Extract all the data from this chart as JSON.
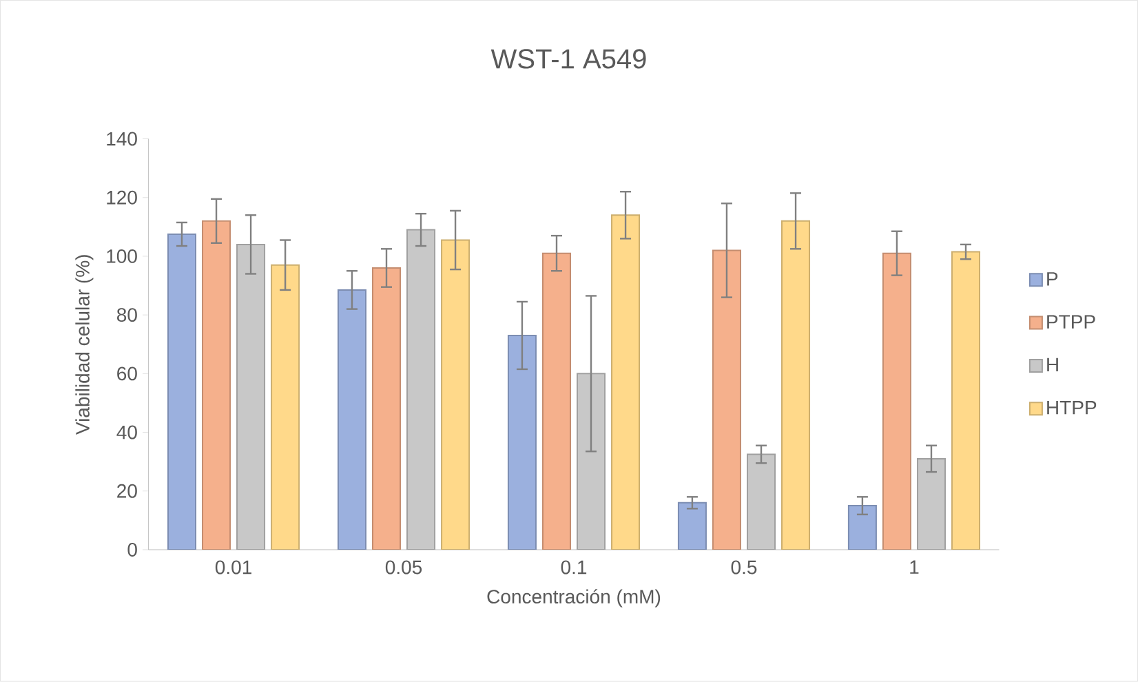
{
  "chart_data": {
    "type": "bar",
    "title": "WST-1 A549",
    "xlabel": "Concentración (mM)",
    "ylabel": "Viabilidad celular (%)",
    "categories": [
      "0.01",
      "0.05",
      "0.1",
      "0.5",
      "1"
    ],
    "series": [
      {
        "name": "P",
        "color": "#9bb0de",
        "values": [
          107.5,
          88.5,
          73,
          16,
          15
        ],
        "errors": [
          4,
          6.5,
          11.5,
          2,
          3
        ]
      },
      {
        "name": "PTPP",
        "color": "#f5b08c",
        "values": [
          112,
          96,
          101,
          102,
          101
        ],
        "errors": [
          7.5,
          6.5,
          6,
          16,
          7.5
        ]
      },
      {
        "name": "H",
        "color": "#c8c8c8",
        "values": [
          104,
          109,
          60,
          32.5,
          31
        ],
        "errors": [
          10,
          5.5,
          26.5,
          3,
          4.5
        ]
      },
      {
        "name": "HTPP",
        "color": "#ffd98a",
        "values": [
          97,
          105.5,
          114,
          112,
          101.5
        ],
        "errors": [
          8.5,
          10,
          8,
          9.5,
          2.5
        ]
      }
    ],
    "ylim": [
      0,
      140
    ],
    "yticks": [
      0,
      20,
      40,
      60,
      80,
      100,
      120,
      140
    ],
    "grid": false,
    "legend": "right"
  }
}
